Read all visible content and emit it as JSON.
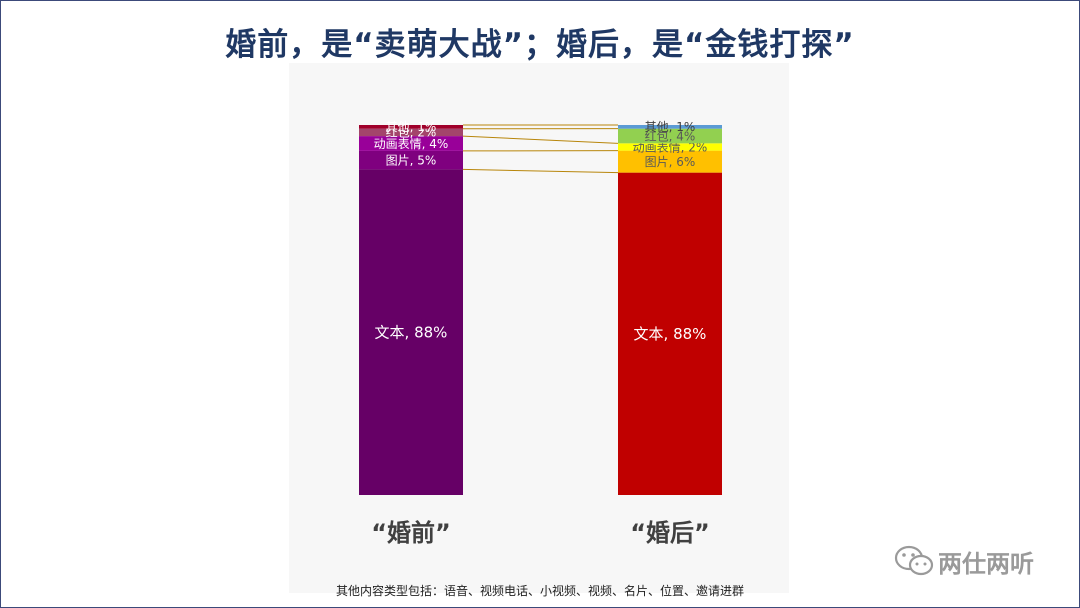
{
  "title": "婚前，是“卖萌大战”；婚后，是“金钱打探”",
  "footnote": "其他内容类型包括：语音、视频电话、小视频、视频、名片、位置、邀请进群",
  "watermark": "两仕两听",
  "chart_data": {
    "type": "bar",
    "stacked": true,
    "percent": true,
    "categories": [
      "“婚前”",
      "“婚后”"
    ],
    "series": [
      {
        "name": "文本",
        "values": [
          88,
          88
        ],
        "colors": [
          "#660066",
          "#c00000"
        ]
      },
      {
        "name": "图片",
        "values": [
          5,
          6
        ],
        "colors": [
          "#7f007f",
          "#ffc000"
        ]
      },
      {
        "name": "动画表情",
        "values": [
          4,
          2
        ],
        "colors": [
          "#990099",
          "#ffff00"
        ]
      },
      {
        "name": "红包",
        "values": [
          2,
          4
        ],
        "colors": [
          "#a3456b",
          "#92d050"
        ]
      },
      {
        "name": "其他",
        "values": [
          1,
          1
        ],
        "colors": [
          "#a0002a",
          "#5b9bd5"
        ]
      }
    ],
    "labels": {
      "before": [
        "文本, 88%",
        "图片, 5%",
        "动画表情, 4%",
        "红包, 2%",
        "其他, 1%"
      ],
      "after": [
        "文本, 88%",
        "图片, 6%",
        "动画表情, 2%",
        "红包, 4%",
        "其他, 1%"
      ]
    },
    "label_colors": {
      "before": [
        "#ffffff",
        "#ffffff",
        "#ffffff",
        "#ffffff",
        "#ffffff"
      ],
      "after": [
        "#ffffff",
        "#595959",
        "#595959",
        "#595959",
        "#404040"
      ]
    },
    "connector_color": "#b8860b",
    "background": "#f7f7f7"
  }
}
